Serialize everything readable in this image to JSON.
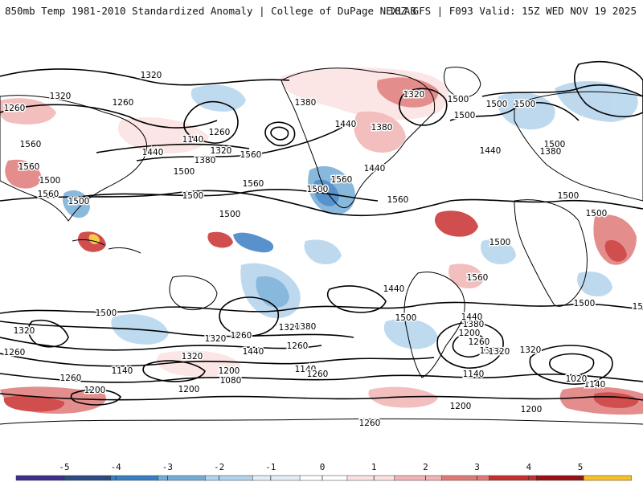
{
  "header": {
    "title_left": "850mb Temp 1981-2010 Standardized Anomaly | College of DuPage NEXLAB",
    "title_right": "18Z GFS | F093 Valid: 15Z WED NOV 19 2025"
  },
  "colors": {
    "land_outline": "#000000",
    "contour": "#000000",
    "background": "#ffffff"
  },
  "contour_labels": [
    "1320",
    "1320",
    "1260",
    "1260",
    "1140",
    "1260",
    "1320",
    "1380",
    "1560",
    "1440",
    "1560",
    "1500",
    "1560",
    "1500",
    "1380",
    "1440",
    "1500",
    "1560",
    "1440",
    "1380",
    "1320",
    "1500",
    "1500",
    "1500",
    "1500",
    "1380",
    "1440",
    "1500",
    "1560",
    "1500",
    "1500",
    "1560",
    "1560",
    "1500",
    "1500",
    "1440",
    "1320",
    "1380",
    "1500",
    "1500",
    "1260",
    "1320",
    "1440",
    "1200",
    "1080",
    "1140",
    "1140",
    "1320",
    "1260",
    "1380",
    "1200",
    "1320",
    "1320",
    "1260",
    "1260",
    "1200",
    "1260",
    "1200",
    "1500",
    "1560",
    "1380",
    "1440",
    "1260",
    "1320",
    "1140",
    "1200",
    "1140",
    "1020",
    "1500",
    "1500",
    "1500",
    "1260",
    "1200"
  ],
  "colorbar": {
    "ticks": [
      "-5",
      "-4",
      "-3",
      "-2",
      "-1",
      "0",
      "1",
      "2",
      "3",
      "4",
      "5"
    ],
    "colors": [
      "#3d2f8c",
      "#2c4a85",
      "#3a7fc4",
      "#74add7",
      "#b3d3ec",
      "#e2eef8",
      "#ffffff",
      "#fbe1e1",
      "#f1b3b3",
      "#e07a7a",
      "#c8302f",
      "#9b1015",
      "#f5c02a"
    ]
  }
}
